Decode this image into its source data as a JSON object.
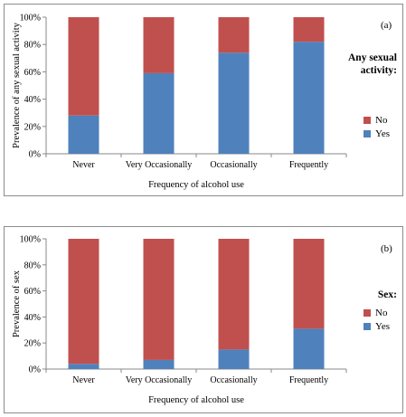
{
  "colors": {
    "yes": "#4F81BD",
    "no": "#C0504D",
    "axis": "#888888",
    "border": "#8c8c8c"
  },
  "chart_data": [
    {
      "type": "bar",
      "stacked": true,
      "panel_label": "(a)",
      "xlabel": "Frequency of alcohol  use",
      "ylabel": "Prevalence of any sexual activity",
      "categories": [
        "Never",
        "Very Occasionally",
        "Occasionally",
        "Frequently"
      ],
      "yticks": [
        "0%",
        "20%",
        "40%",
        "60%",
        "80%",
        "100%"
      ],
      "ylim": [
        0,
        100
      ],
      "legend_title_lines": [
        "Any sexual",
        "activity:"
      ],
      "legend_position": "right",
      "series": [
        {
          "name": "Yes",
          "values": [
            28,
            59,
            74,
            82
          ]
        },
        {
          "name": "No",
          "values": [
            72,
            41,
            26,
            18
          ]
        }
      ]
    },
    {
      "type": "bar",
      "stacked": true,
      "panel_label": "(b)",
      "xlabel": "Frequency of alcohol use",
      "ylabel": "Prevalence of sex",
      "categories": [
        "Never",
        "Very Occasionally",
        "Occasionally",
        "Frequently"
      ],
      "yticks": [
        "0%",
        "20%",
        "40%",
        "60%",
        "80%",
        "100%"
      ],
      "ylim": [
        0,
        100
      ],
      "legend_title_lines": [
        "Sex:"
      ],
      "legend_position": "right",
      "series": [
        {
          "name": "Yes",
          "values": [
            4,
            7,
            15,
            31
          ]
        },
        {
          "name": "No",
          "values": [
            96,
            93,
            85,
            69
          ]
        }
      ]
    }
  ]
}
